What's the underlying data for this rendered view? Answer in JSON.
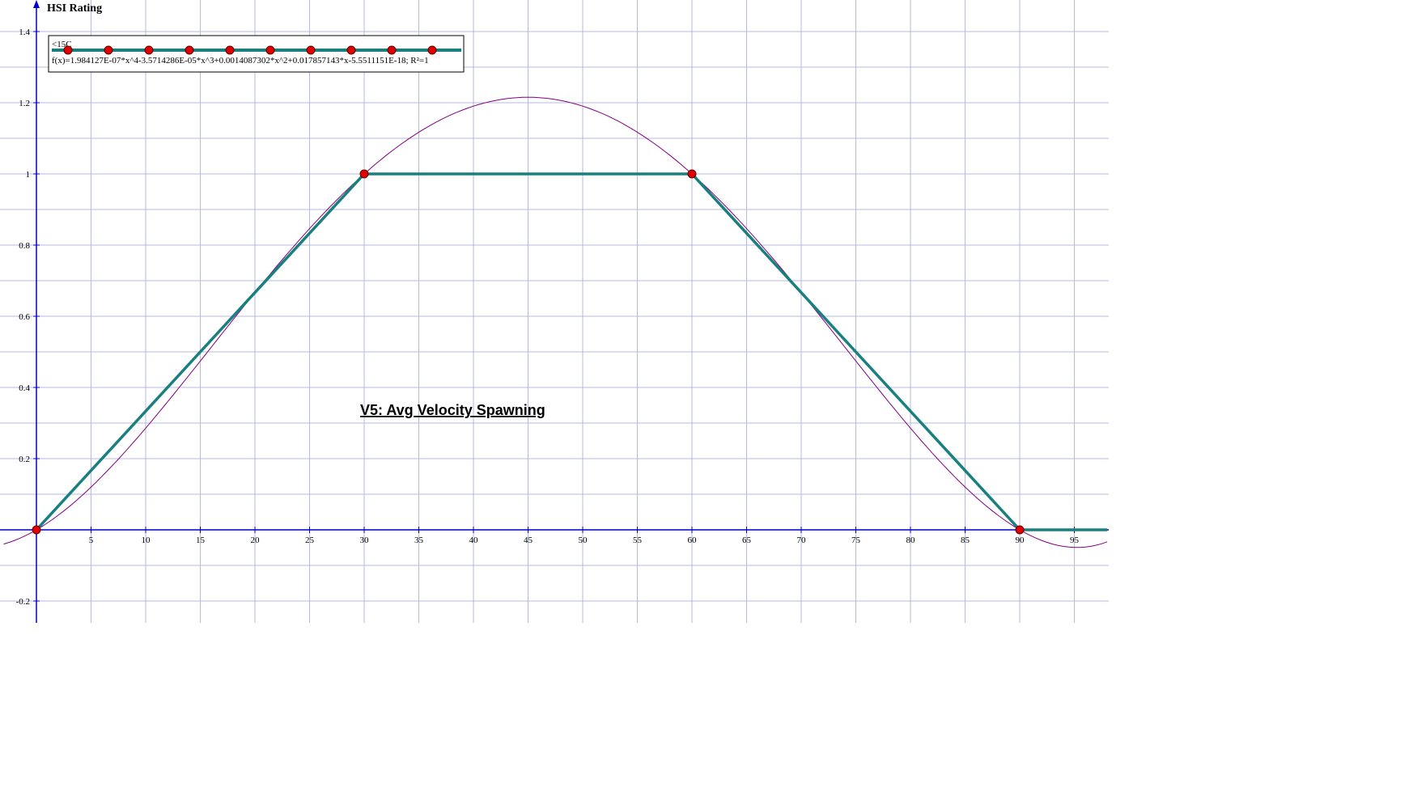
{
  "chart_data": {
    "type": "line",
    "title": "",
    "ylabel": "HSI Rating",
    "xlabel": "",
    "xlim": [
      -3,
      98
    ],
    "ylim": [
      -0.26,
      1.5
    ],
    "x_ticks": [
      5,
      10,
      15,
      20,
      25,
      30,
      35,
      40,
      45,
      50,
      55,
      60,
      65,
      70,
      75,
      80,
      85,
      90,
      95
    ],
    "y_ticks": [
      -0.2,
      0.2,
      0.4,
      0.6,
      0.8,
      1,
      1.2,
      1.4
    ],
    "grid": true,
    "legend_position": "top-left",
    "annotation": "V5: Avg Velocity Spawning",
    "series": [
      {
        "name": "<15C",
        "color": "#1a7f7f",
        "marker_color": "#e00000",
        "x": [
          0,
          30,
          60,
          90,
          98
        ],
        "y": [
          0,
          1,
          1,
          0,
          0
        ],
        "markers": [
          [
            0,
            0
          ],
          [
            30,
            1
          ],
          [
            60,
            1
          ],
          [
            90,
            0
          ]
        ]
      },
      {
        "name": "f(x)=1.984127E-07*x^4-3.5714286E-05*x^3+0.0014087302*x^2+0.017857143*x-5.5511151E-18; R²=1",
        "color": "#800080",
        "type": "polynomial",
        "coefficients": [
          1.984127e-07,
          -3.5714286e-05,
          0.0014087302,
          0.017857143,
          -5.5511151e-18
        ],
        "x_range": [
          -3,
          98
        ]
      }
    ]
  }
}
